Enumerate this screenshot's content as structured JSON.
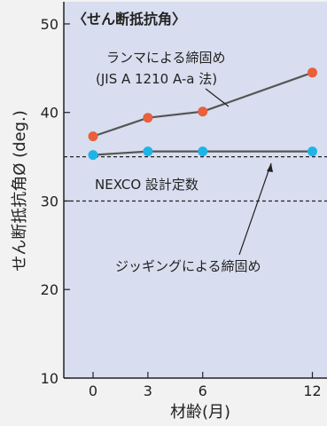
{
  "chart_data": {
    "type": "line",
    "title": "〈せん断抵抗角〉",
    "xlabel": "材齢(月)",
    "ylabel": "せん断抵抗角Ø (deg.)",
    "x_ticks": [
      0,
      3,
      6,
      12
    ],
    "y_ticks": [
      10,
      20,
      30,
      40,
      50
    ],
    "xlim": [
      -1.6,
      12.8
    ],
    "ylim": [
      10,
      52.5
    ],
    "grid": false,
    "series": [
      {
        "name": "ランマによる締固め (JIS A 1210 A-a 法)",
        "color": "#e8603c",
        "x": [
          0,
          3,
          6,
          12
        ],
        "y": [
          37.3,
          39.4,
          40.1,
          44.5
        ]
      },
      {
        "name": "ジッギングによる締固め",
        "color": "#1fb4e8",
        "x": [
          0,
          3,
          6,
          12
        ],
        "y": [
          35.2,
          35.6,
          35.6,
          35.6
        ]
      }
    ],
    "reference_lines": [
      {
        "y": 35.0
      },
      {
        "y": 30.0
      }
    ],
    "annotations": {
      "rammer_line1": "ランマによる締固め",
      "rammer_line2": "(JIS A 1210 A-a 法)",
      "nexco": "NEXCO 設計定数",
      "jigging": "ジッギングによる締固め"
    },
    "colors": {
      "plot_bg": "#d8deef",
      "page_bg": "#f2f2f2",
      "line": "#555555"
    }
  }
}
